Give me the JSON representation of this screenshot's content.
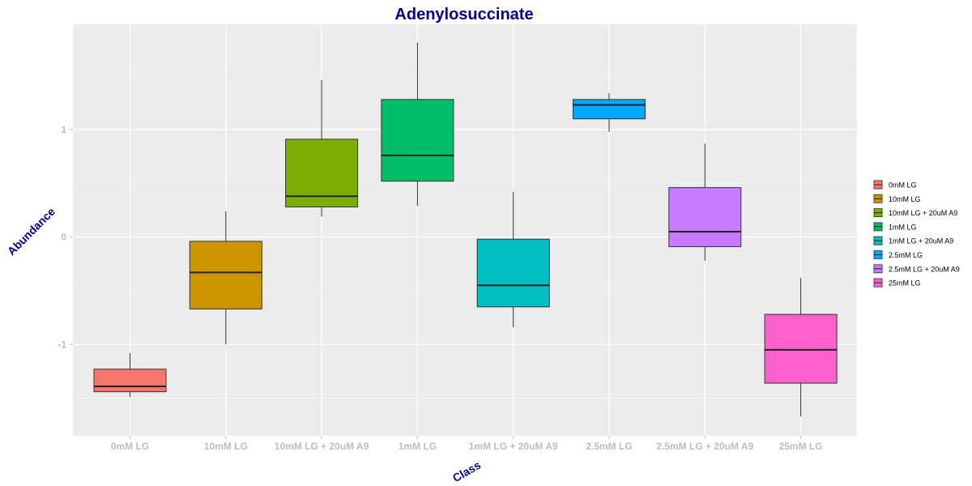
{
  "chart_data": {
    "type": "box",
    "title": "Adenylosuccinate",
    "xlabel": "Class",
    "ylabel": "Abundance",
    "ylim": [
      -1.85,
      1.98
    ],
    "yticks": [
      -1,
      0,
      1
    ],
    "grid": true,
    "legend_position": "right",
    "categories": [
      "0mM LG",
      "10mM LG",
      "10mM LG + 20uM A9",
      "1mM LG",
      "1mM LG + 20uM A9",
      "2.5mM LG",
      "2.5mM LG + 20uM A9",
      "25mM LG"
    ],
    "series": [
      {
        "name": "0mM LG",
        "color": "#f8766d",
        "min": -1.49,
        "q1": -1.44,
        "median": -1.39,
        "q3": -1.23,
        "max": -1.08
      },
      {
        "name": "10mM LG",
        "color": "#cd9600",
        "min": -1.0,
        "q1": -0.67,
        "median": -0.33,
        "q3": -0.04,
        "max": 0.24
      },
      {
        "name": "10mM LG + 20uM A9",
        "color": "#7cae00",
        "min": 0.19,
        "q1": 0.28,
        "median": 0.38,
        "q3": 0.91,
        "max": 1.46
      },
      {
        "name": "1mM LG",
        "color": "#00be67",
        "min": 0.29,
        "q1": 0.52,
        "median": 0.76,
        "q3": 1.28,
        "max": 1.81
      },
      {
        "name": "1mM LG + 20uM A9",
        "color": "#00bfc4",
        "min": -0.84,
        "q1": -0.65,
        "median": -0.45,
        "q3": -0.02,
        "max": 0.42
      },
      {
        "name": "2.5mM LG",
        "color": "#00a9ff",
        "min": 0.98,
        "q1": 1.1,
        "median": 1.23,
        "q3": 1.28,
        "max": 1.34
      },
      {
        "name": "2.5mM LG + 20uM A9",
        "color": "#c77cff",
        "min": -0.22,
        "q1": -0.09,
        "median": 0.05,
        "q3": 0.46,
        "max": 0.87
      },
      {
        "name": "25mM LG",
        "color": "#ff61cc",
        "min": -1.67,
        "q1": -1.36,
        "median": -1.05,
        "q3": -0.72,
        "max": -0.38
      }
    ]
  }
}
